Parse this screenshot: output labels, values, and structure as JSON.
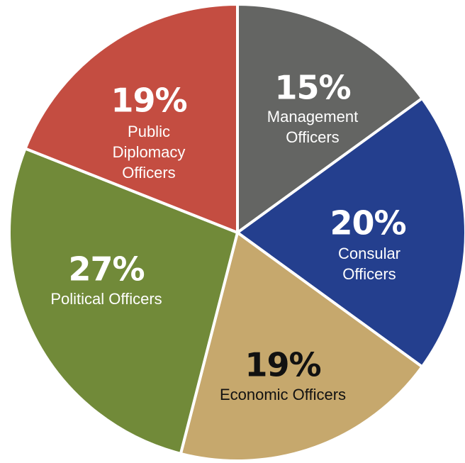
{
  "chart_data": {
    "type": "pie",
    "title": "",
    "slices": [
      {
        "label": [
          "Management",
          "Officers"
        ],
        "value": 15,
        "percent_label": "15%",
        "color": "#646563",
        "text_color": "#ffffff"
      },
      {
        "label": [
          "Consular",
          "Officers"
        ],
        "value": 20,
        "percent_label": "20%",
        "color": "#243f8e",
        "text_color": "#ffffff"
      },
      {
        "label": [
          "Economic Officers"
        ],
        "value": 19,
        "percent_label": "19%",
        "color": "#c6a86d",
        "text_color": "#111111"
      },
      {
        "label": [
          "Political Officers"
        ],
        "value": 27,
        "percent_label": "27%",
        "color": "#718a39",
        "text_color": "#ffffff"
      },
      {
        "label": [
          "Public",
          "Diplomacy",
          "Officers"
        ],
        "value": 19,
        "percent_label": "19%",
        "color": "#c44d41",
        "text_color": "#ffffff"
      }
    ]
  }
}
